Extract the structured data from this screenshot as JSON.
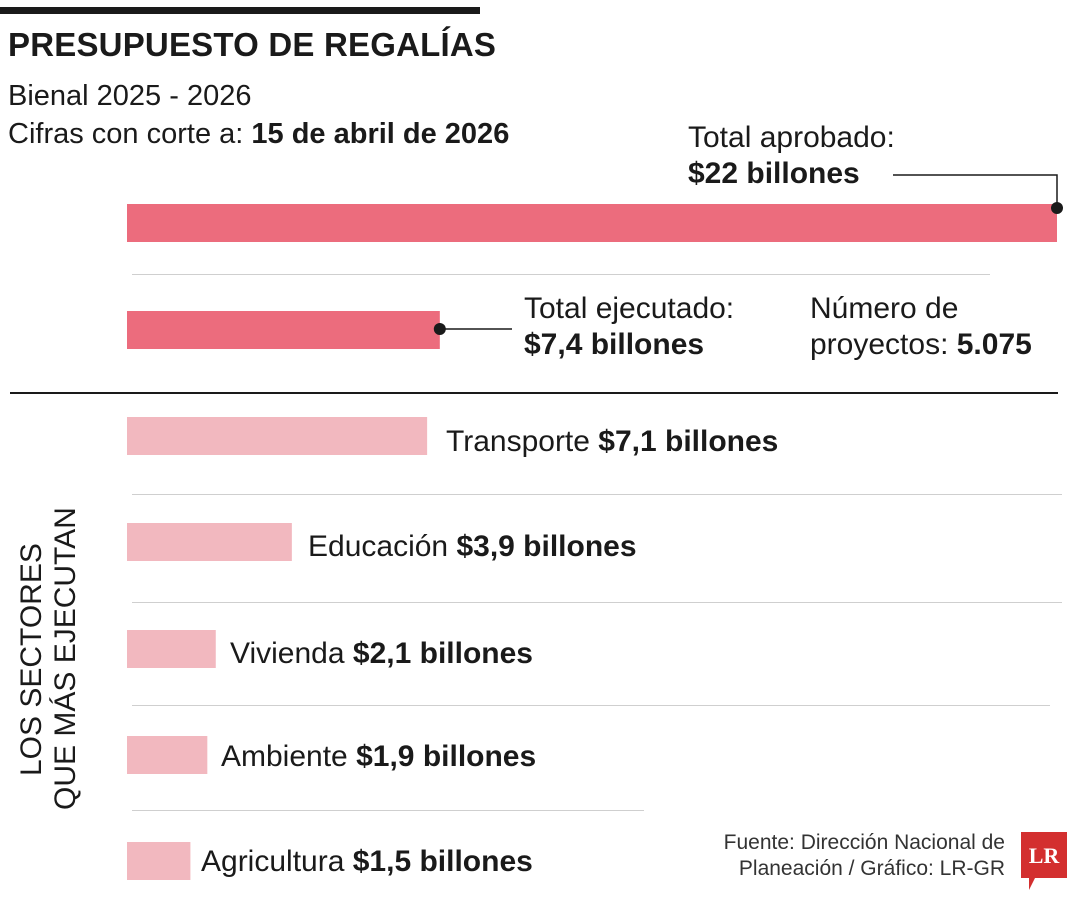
{
  "header": {
    "title": "PRESUPUESTO DE REGALÍAS",
    "subtitle": "Bienal 2025 - 2026",
    "cutoff_prefix": "Cifras con corte a:",
    "cutoff_date": "15 de abril de 2026"
  },
  "chart_data": {
    "type": "bar",
    "orientation": "horizontal",
    "unit": "billones",
    "totals": [
      {
        "label": "Total aprobado:",
        "value": 22,
        "value_text": "$22 billones",
        "color": "#ec6c7d"
      },
      {
        "label": "Total ejecutado:",
        "value": 7.4,
        "value_text": "$7,4 billones",
        "color": "#ec6c7d"
      }
    ],
    "projects": {
      "label_line1": "Número de",
      "label_line2": "proyectos:",
      "value": "5.075"
    },
    "sectors_title_line1": "LOS SECTORES",
    "sectors_title_line2": "QUE MÁS EJECUTAN",
    "sectors": [
      {
        "name": "Transporte",
        "value": 7.1,
        "value_text": "$7,1 billones"
      },
      {
        "name": "Educación",
        "value": 3.9,
        "value_text": "$3,9 billones"
      },
      {
        "name": "Vivienda",
        "value": 2.1,
        "value_text": "$2,1 billones"
      },
      {
        "name": "Ambiente",
        "value": 1.9,
        "value_text": "$1,9 billones"
      },
      {
        "name": "Agricultura",
        "value": 1.5,
        "value_text": "$1,5 billones"
      }
    ],
    "sector_color": "#f2b8bf",
    "max_value": 22
  },
  "footer": {
    "source_line1": "Fuente: Dirección Nacional de",
    "source_line2": "Planeación / Gráfico: LR-GR",
    "logo_text": "LR",
    "logo_color": "#d32f2f"
  }
}
